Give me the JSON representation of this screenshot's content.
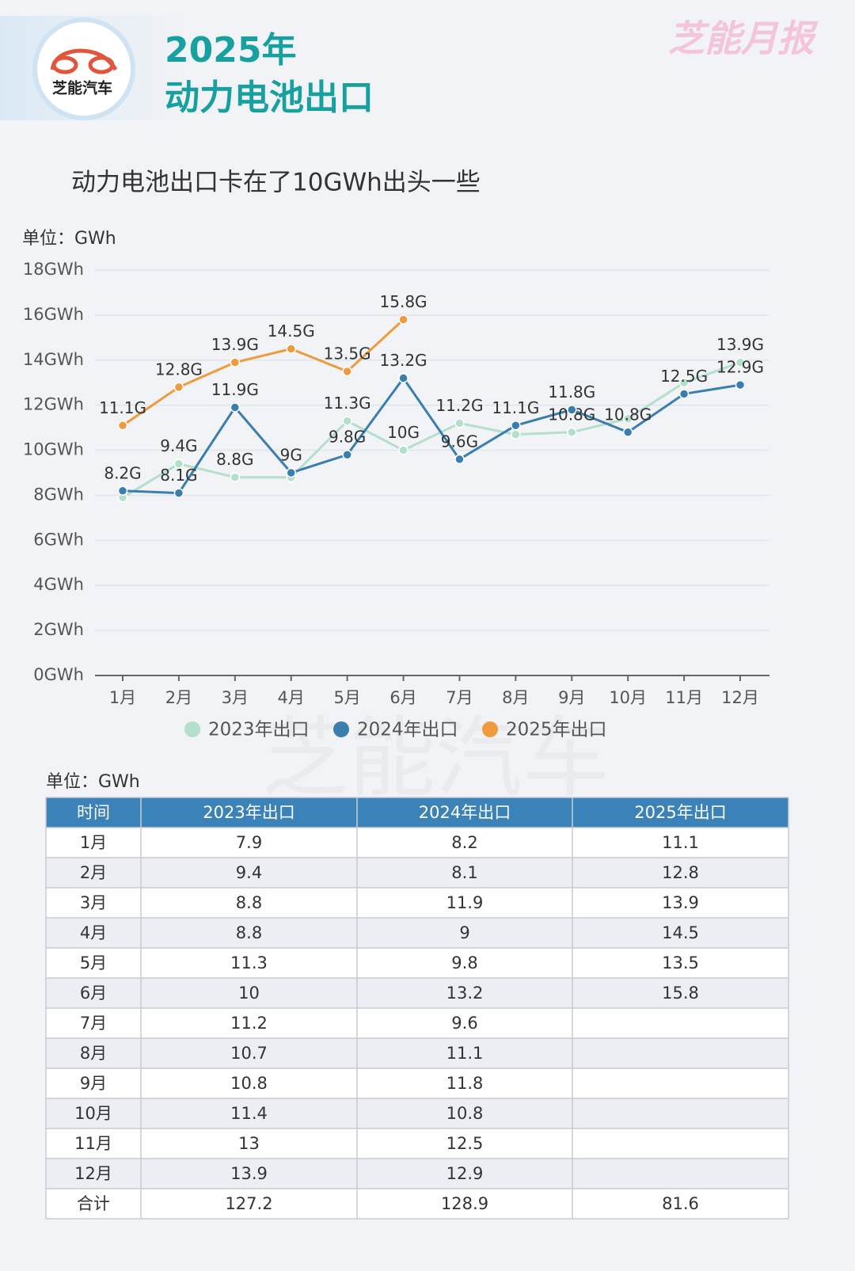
{
  "header": {
    "logo_text": "芝能汽车",
    "title": [
      "2025年",
      "动力电池出口"
    ],
    "brand": "芝能月报"
  },
  "chart_data": {
    "type": "line",
    "title": "动力电池出口卡在了10GWh出头一些",
    "unit": "单位：GWh",
    "categories": [
      "1月",
      "2月",
      "3月",
      "4月",
      "5月",
      "6月",
      "7月",
      "8月",
      "9月",
      "10月",
      "11月",
      "12月"
    ],
    "ylim": [
      0,
      18
    ],
    "yticks": [
      {
        "value": 0,
        "label": "0GWh"
      },
      {
        "value": 2,
        "label": "2GWh"
      },
      {
        "value": 4,
        "label": "4GWh"
      },
      {
        "value": 6,
        "label": "6GWh"
      },
      {
        "value": 8,
        "label": "8GWh"
      },
      {
        "value": 10,
        "label": "10GWh"
      },
      {
        "value": 12,
        "label": "12GWh"
      },
      {
        "value": 14,
        "label": "14GWh"
      },
      {
        "value": 16,
        "label": "16GWh"
      },
      {
        "value": 18,
        "label": "18GWh"
      }
    ],
    "grid": true,
    "legend": "bottom",
    "series": [
      {
        "name": "2023年出口",
        "color": "#b3dfcb",
        "values": [
          7.9,
          9.4,
          8.8,
          8.8,
          11.3,
          10,
          11.2,
          10.7,
          10.8,
          11.4,
          13,
          13.9
        ],
        "value_labels": [
          null,
          "9.4G",
          "8.8G",
          null,
          "11.3G",
          "10G",
          "11.2G",
          null,
          "10.8G",
          null,
          null,
          "13.9G"
        ]
      },
      {
        "name": "2024年出口",
        "color": "#3a7eb0",
        "values": [
          8.2,
          8.1,
          11.9,
          9,
          9.8,
          13.2,
          9.6,
          11.1,
          11.8,
          10.8,
          12.5,
          12.9
        ],
        "value_labels": [
          "8.2G",
          "8.1G",
          "11.9G",
          "9G",
          "9.8G",
          "13.2G",
          "9.6G",
          "11.1G",
          "11.8G",
          "10.8G",
          "12.5G",
          "12.9G"
        ]
      },
      {
        "name": "2025年出口",
        "color": "#f09a3e",
        "values": [
          11.1,
          12.8,
          13.9,
          14.5,
          13.5,
          15.8,
          null,
          null,
          null,
          null,
          null,
          null
        ],
        "value_labels": [
          "11.1G",
          "12.8G",
          "13.9G",
          "14.5G",
          "13.5G",
          "15.8G",
          null,
          null,
          null,
          null,
          null,
          null
        ]
      }
    ]
  },
  "table": {
    "unit": "单位：GWh",
    "header": [
      "时间",
      "2023年出口",
      "2024年出口",
      "2025年出口"
    ],
    "rows": [
      [
        "1月",
        7.9,
        8.2,
        11.1
      ],
      [
        "2月",
        9.4,
        8.1,
        12.8
      ],
      [
        "3月",
        8.8,
        11.9,
        13.9
      ],
      [
        "4月",
        8.8,
        9,
        14.5
      ],
      [
        "5月",
        11.3,
        9.8,
        13.5
      ],
      [
        "6月",
        10,
        13.2,
        15.8
      ],
      [
        "7月",
        11.2,
        9.6,
        null
      ],
      [
        "8月",
        10.7,
        11.1,
        null
      ],
      [
        "9月",
        10.8,
        11.8,
        null
      ],
      [
        "10月",
        11.4,
        10.8,
        null
      ],
      [
        "11月",
        13,
        12.5,
        null
      ],
      [
        "12月",
        13.9,
        12.9,
        null
      ],
      [
        "合计",
        127.2,
        128.9,
        81.6
      ]
    ]
  }
}
